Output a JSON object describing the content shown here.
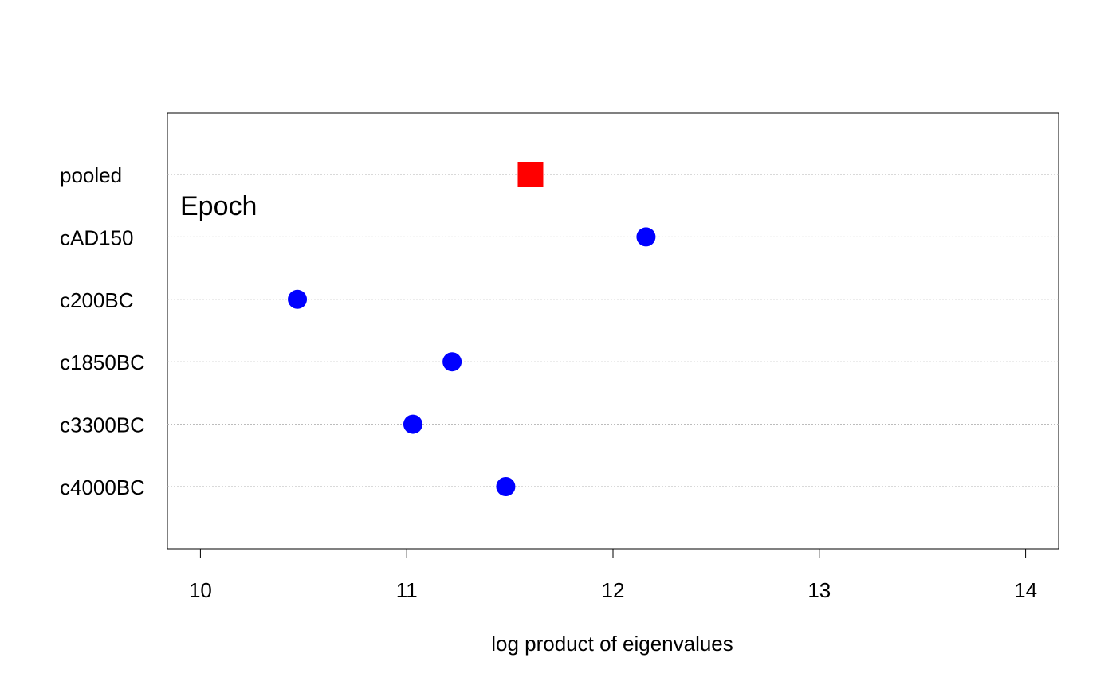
{
  "chart_data": {
    "type": "scatter",
    "subtype": "dotplot",
    "xlabel": "log product of eigenvalues",
    "ylabel": "",
    "xlim": [
      9.84,
      14.16
    ],
    "x_ticks": [
      10,
      11,
      12,
      13,
      14
    ],
    "categories": [
      "pooled",
      "cAD150",
      "c200BC",
      "c1850BC",
      "c3300BC",
      "c4000BC"
    ],
    "annotation": "Epoch",
    "grid": true,
    "series": [
      {
        "marker": "square",
        "color": "#ff0000",
        "points": [
          {
            "category": "pooled",
            "x": 11.6
          }
        ]
      },
      {
        "marker": "circle",
        "color": "#0000ff",
        "points": [
          {
            "category": "cAD150",
            "x": 12.16
          },
          {
            "category": "c200BC",
            "x": 10.47
          },
          {
            "category": "c1850BC",
            "x": 11.22
          },
          {
            "category": "c3300BC",
            "x": 11.03
          },
          {
            "category": "c4000BC",
            "x": 11.48
          }
        ]
      }
    ]
  }
}
